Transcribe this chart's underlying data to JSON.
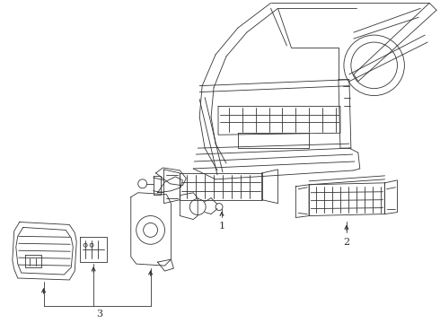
{
  "background_color": "#ffffff",
  "line_color": "#333333",
  "label_1": "1",
  "label_2": "2",
  "label_3": "3",
  "fig_width": 4.9,
  "fig_height": 3.6,
  "dpi": 100
}
